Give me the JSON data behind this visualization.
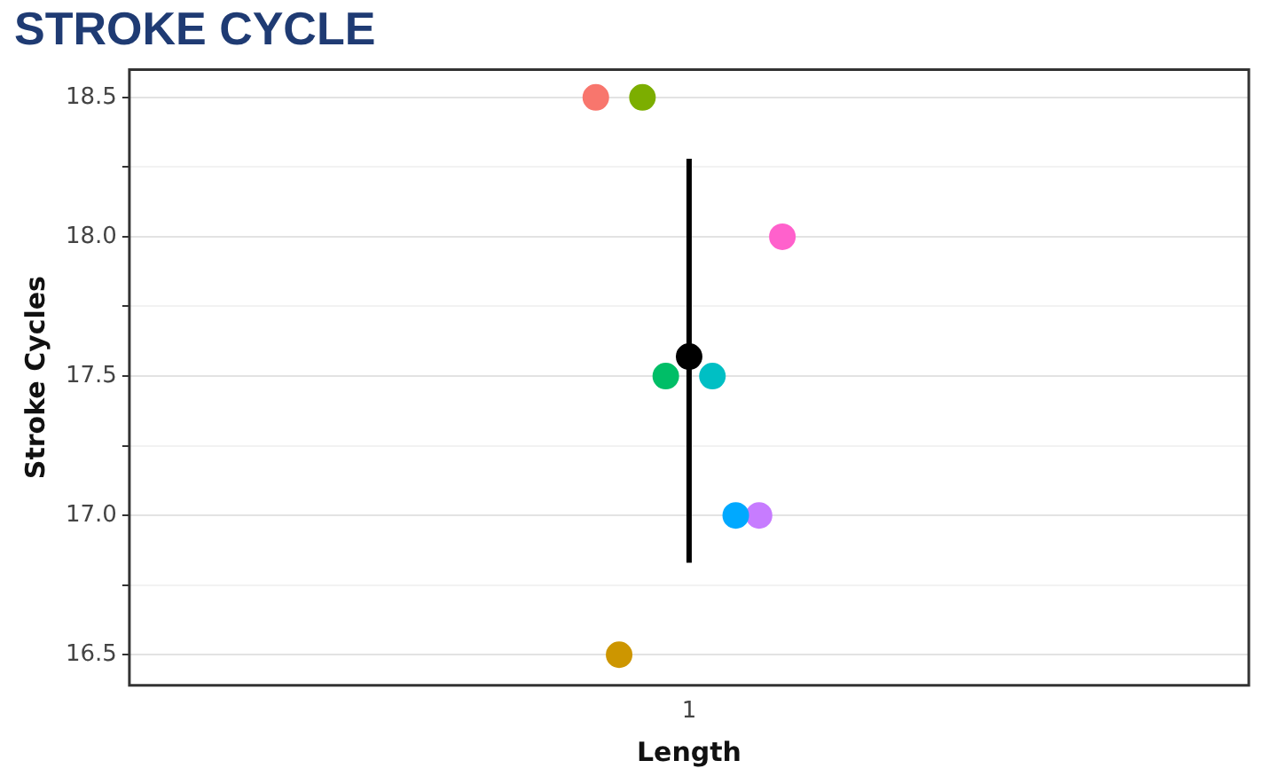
{
  "chart_data": {
    "type": "scatter",
    "title": "STROKE CYCLE",
    "xlabel": "Length",
    "ylabel": "Stroke Cycles",
    "categories": [
      "1"
    ],
    "ylim": [
      16.39,
      18.6
    ],
    "yticks": [
      {
        "value": 16.5,
        "label": "16.5"
      },
      {
        "value": 16.75,
        "label": null
      },
      {
        "value": 17.0,
        "label": "17.0"
      },
      {
        "value": 17.25,
        "label": null
      },
      {
        "value": 17.5,
        "label": "17.5"
      },
      {
        "value": 17.75,
        "label": null
      },
      {
        "value": 18.0,
        "label": "18.0"
      },
      {
        "value": 18.25,
        "label": null
      },
      {
        "value": 18.5,
        "label": "18.5"
      }
    ],
    "grid": "y",
    "legend": false,
    "marker": "circle",
    "series": [
      {
        "color": "#f8766d",
        "values": [
          18.5
        ]
      },
      {
        "color": "#cd9600",
        "values": [
          16.5
        ]
      },
      {
        "color": "#7cae00",
        "values": [
          18.5
        ]
      },
      {
        "color": "#00be67",
        "values": [
          17.5
        ]
      },
      {
        "color": "#000000",
        "values": [
          17.57
        ],
        "errors": [
          [
            16.83,
            18.28
          ]
        ]
      },
      {
        "color": "#00bfc4",
        "values": [
          17.5
        ]
      },
      {
        "color": "#00a9ff",
        "values": [
          17.0
        ]
      },
      {
        "color": "#c77cff",
        "values": [
          17.0
        ]
      },
      {
        "color": "#ff61cc",
        "values": [
          18.0
        ]
      }
    ]
  }
}
